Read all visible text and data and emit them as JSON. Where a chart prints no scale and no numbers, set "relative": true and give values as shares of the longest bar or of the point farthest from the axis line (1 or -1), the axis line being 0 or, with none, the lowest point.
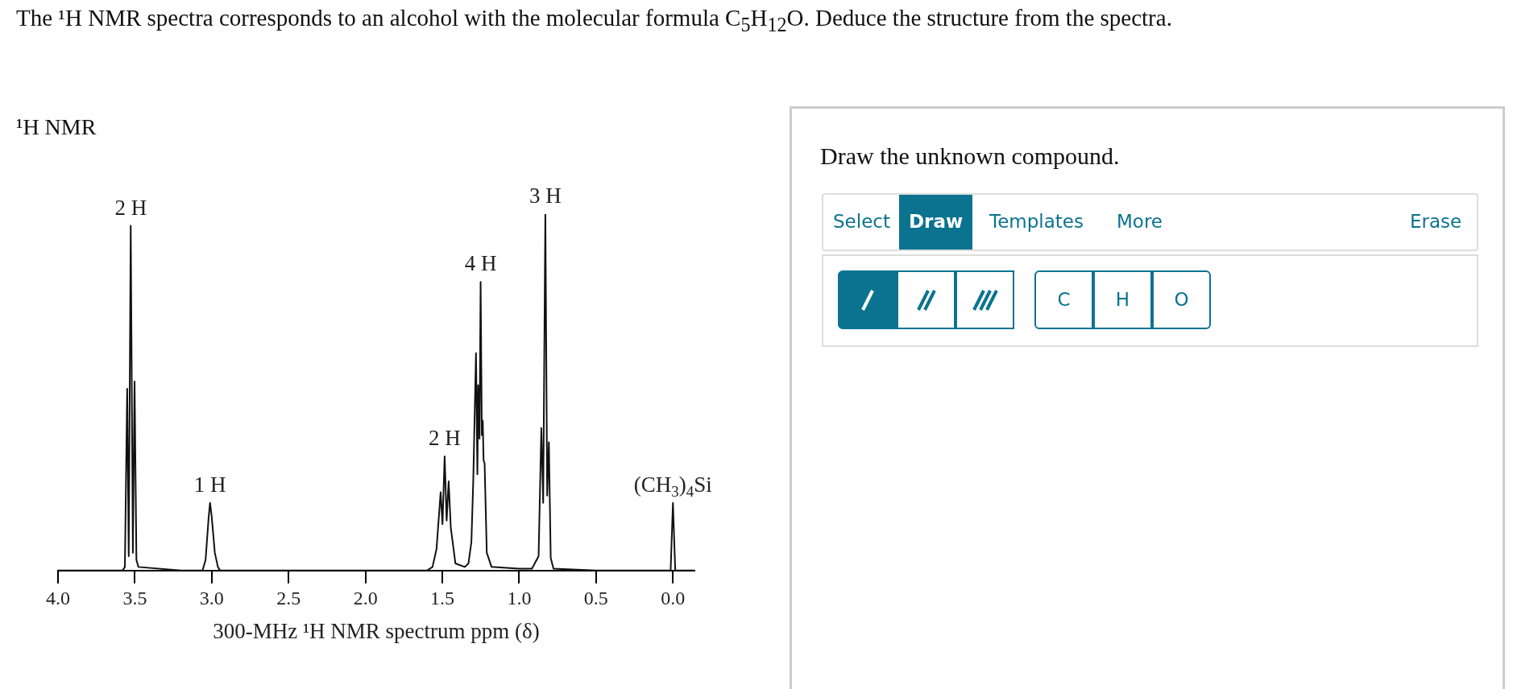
{
  "chart_data": [
    {
      "type": "line",
      "title": "The ¹H NMR spectra corresponds to an alcohol with the molecular formula C$_{5}$H$_{12}$O. Deduce the structure from the spectra.",
      "subtitle": "¹H NMR",
      "xlabel": "300-MHz ¹H NMR spectrum ppm (δ)",
      "relative": true,
      "marker": "none",
      "grid": false,
      "legend": false,
      "xlim": [
        4.0,
        -0.14
      ],
      "xticks": [
        {
          "value": 4,
          "label": "4.0"
        },
        {
          "value": 3.5,
          "label": "3.5"
        },
        {
          "value": 3,
          "label": "3.0"
        },
        {
          "value": 2.5,
          "label": "2.5"
        },
        {
          "value": 2,
          "label": "2.0"
        },
        {
          "value": 1.5,
          "label": "1.5"
        },
        {
          "value": 1,
          "label": "1.0"
        },
        {
          "value": 0.5,
          "label": "0.5"
        },
        {
          "value": 0,
          "label": "0.0"
        }
      ],
      "series": [
        {
          "color": "#111111",
          "x": [
            4.0,
            3.58,
            3.565,
            3.55,
            3.54,
            3.527,
            3.513,
            3.502,
            3.49,
            3.477,
            3.2,
            3.06,
            3.04,
            3.02,
            3.011,
            3.0,
            2.98,
            2.96,
            2.946,
            2.9,
            2.0,
            1.6,
            1.564,
            1.538,
            1.511,
            1.499,
            1.485,
            1.472,
            1.459,
            1.445,
            1.433,
            1.415,
            1.354,
            1.33,
            1.311,
            1.299,
            1.281,
            1.272,
            1.267,
            1.258,
            1.251,
            1.243,
            1.237,
            1.232,
            1.225,
            1.211,
            1.18,
            1.0,
            0.917,
            0.874,
            0.856,
            0.844,
            0.83,
            0.818,
            0.807,
            0.795,
            0.777,
            0.5,
            0.015,
            0.0,
            -0.015,
            -0.14
          ],
          "values": [
            0,
            0,
            0.01,
            0.51,
            0.04,
            0.967,
            0.05,
            0.53,
            0.03,
            0.01,
            0,
            0,
            0.03,
            0.15,
            0.19,
            0.15,
            0.05,
            0.01,
            0,
            0,
            0,
            0,
            0.01,
            0.06,
            0.22,
            0.13,
            0.32,
            0.14,
            0.25,
            0.12,
            0.08,
            0.02,
            0.01,
            0.02,
            0.08,
            0.25,
            0.61,
            0.27,
            0.52,
            0.37,
            0.81,
            0.38,
            0.42,
            0.31,
            0.3,
            0.05,
            0.01,
            0.005,
            0.005,
            0.04,
            0.4,
            0.19,
            1.0,
            0.21,
            0.36,
            0.035,
            0.005,
            0,
            0,
            0.19,
            0,
            0
          ]
        }
      ],
      "annotations": [
        {
          "text": "2 H",
          "x": 3.527,
          "y": 0.967
        },
        {
          "text": "1 H",
          "x": 3.011,
          "y": 0.19
        },
        {
          "text": "2 H",
          "x": 1.485,
          "y": 0.32
        },
        {
          "text": "4 H",
          "x": 1.251,
          "y": 0.81
        },
        {
          "text": "3 H",
          "x": 0.83,
          "y": 1.0
        },
        {
          "text": "(CH$_{3}$)$_{4}$Si",
          "x": 0.0,
          "y": 0.19
        }
      ]
    },
    {
      "type": "other",
      "title": "Draw the unknown compound.",
      "annotations": [
        "Select",
        "Draw",
        "Templates",
        "More",
        "Erase",
        "C",
        "H",
        "O"
      ]
    }
  ]
}
